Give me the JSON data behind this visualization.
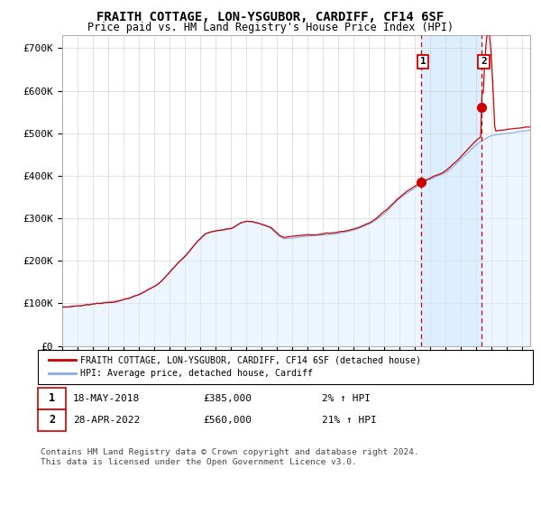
{
  "title": "FRAITH COTTAGE, LON-YSGUBOR, CARDIFF, CF14 6SF",
  "subtitle": "Price paid vs. HM Land Registry's House Price Index (HPI)",
  "title_fontsize": 10,
  "subtitle_fontsize": 9,
  "ylabel_ticks": [
    "£0",
    "£100K",
    "£200K",
    "£300K",
    "£400K",
    "£500K",
    "£600K",
    "£700K"
  ],
  "ytick_values": [
    0,
    100000,
    200000,
    300000,
    400000,
    500000,
    600000,
    700000
  ],
  "ylim": [
    0,
    730000
  ],
  "xlim_start": 1995.0,
  "xlim_end": 2025.5,
  "x_start_year": 1995,
  "x_end_year": 2026,
  "event1_x": 2018.37,
  "event1_y": 385000,
  "event2_x": 2022.32,
  "event2_y": 560000,
  "event1_label": "1",
  "event2_label": "2",
  "event1_date": "18-MAY-2018",
  "event1_price": "£385,000",
  "event1_hpi": "2% ↑ HPI",
  "event2_date": "28-APR-2022",
  "event2_price": "£560,000",
  "event2_hpi": "21% ↑ HPI",
  "red_line_color": "#cc0000",
  "blue_line_color": "#88aadd",
  "blue_fill_color": "#ddeeff",
  "dashed_line_color": "#cc0000",
  "marker_color": "#cc0000",
  "grid_color": "#cccccc",
  "background_color": "#ffffff",
  "shaded_region_color": "#ddeeff",
  "legend_label_red": "FRAITH COTTAGE, LON-YSGUBOR, CARDIFF, CF14 6SF (detached house)",
  "legend_label_blue": "HPI: Average price, detached house, Cardiff",
  "footer_text": "Contains HM Land Registry data © Crown copyright and database right 2024.\nThis data is licensed under the Open Government Licence v3.0.",
  "seed": 42
}
